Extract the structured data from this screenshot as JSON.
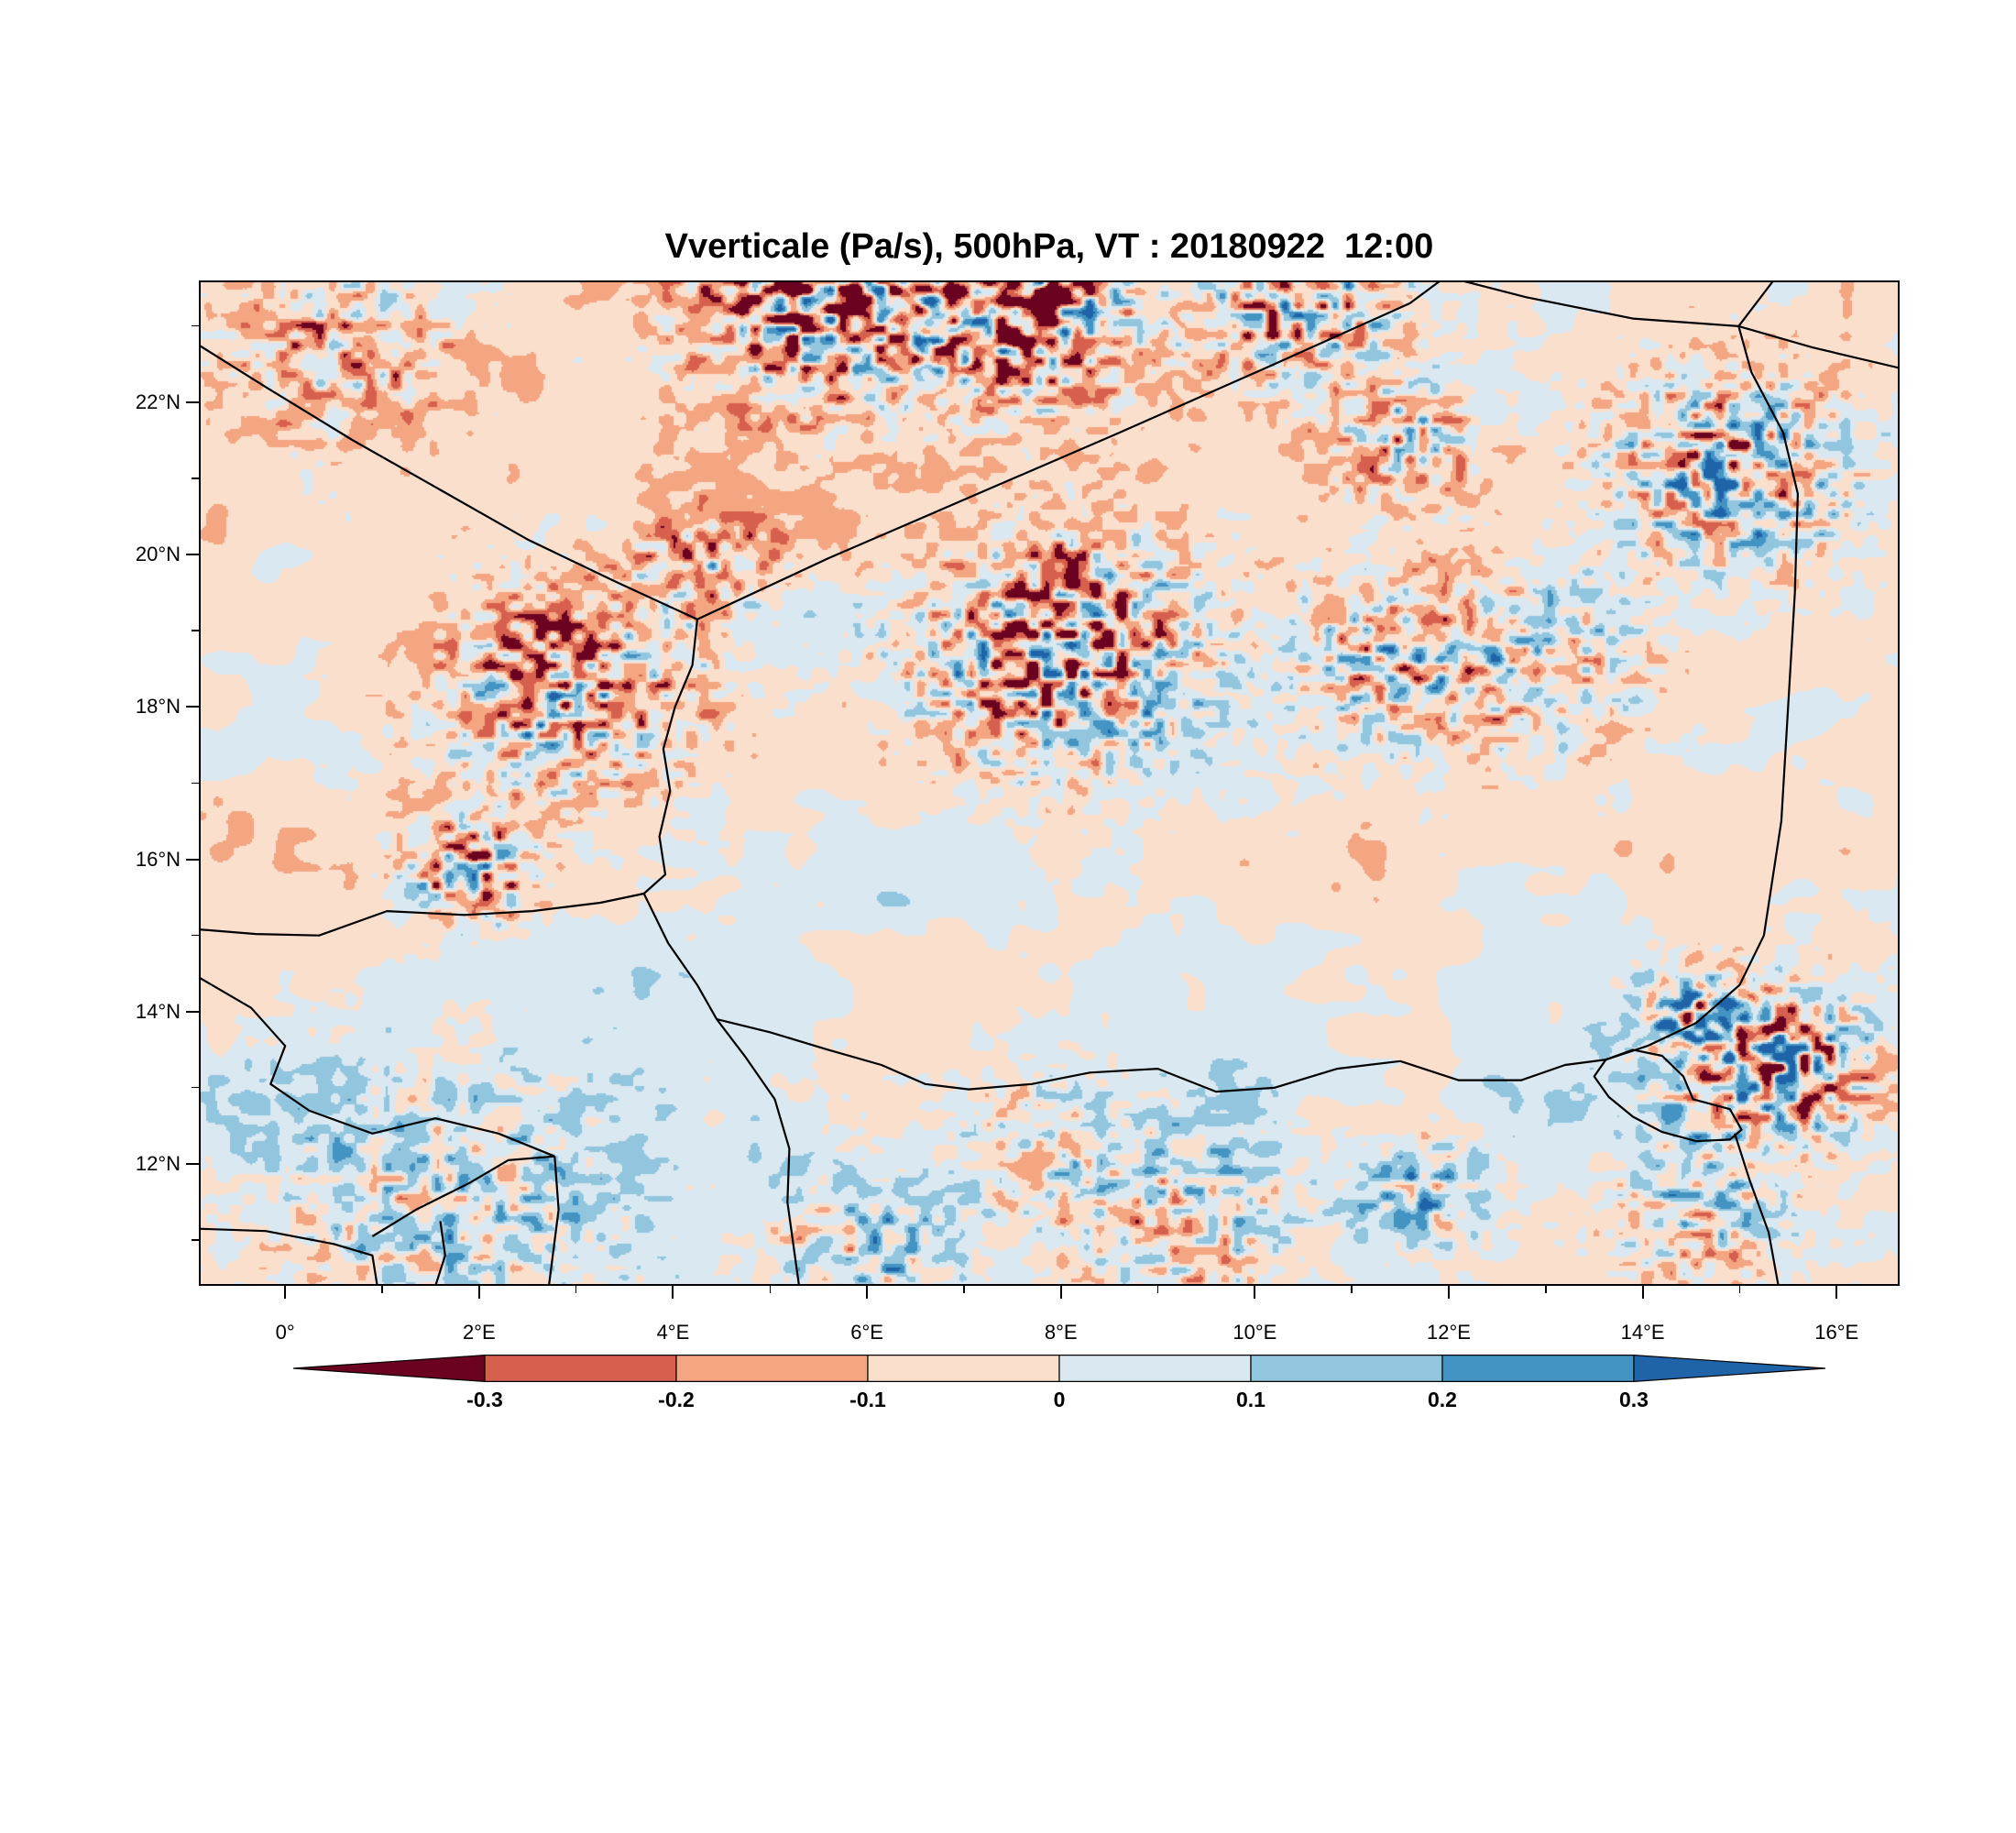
{
  "title": "Vverticale (Pa/s), 500hPa, VT : 20180922  12:00",
  "style": {
    "border_color": "#000000",
    "text_color": "#000000",
    "background": "#ffffff"
  },
  "chart_data": {
    "type": "heatmap",
    "title": "Vverticale (Pa/s), 500hPa, VT : 20180922  12:00",
    "variable": "Vverticale",
    "units": "Pa/s",
    "level": "500hPa",
    "valid_time": "20180922 12:00",
    "map_extent": {
      "lon_min": -0.89,
      "lon_max": 16.65,
      "lat_min": 10.4,
      "lat_max": 23.6
    },
    "lon_ticks": [
      {
        "value": 0,
        "label": "0°"
      },
      {
        "value": 2,
        "label": "2°E"
      },
      {
        "value": 4,
        "label": "4°E"
      },
      {
        "value": 6,
        "label": "6°E"
      },
      {
        "value": 8,
        "label": "8°E"
      },
      {
        "value": 10,
        "label": "10°E"
      },
      {
        "value": 12,
        "label": "12°E"
      },
      {
        "value": 14,
        "label": "14°E"
      },
      {
        "value": 16,
        "label": "16°E"
      }
    ],
    "lat_ticks": [
      {
        "value": 12,
        "label": "12°N"
      },
      {
        "value": 14,
        "label": "14°N"
      },
      {
        "value": 16,
        "label": "16°N"
      },
      {
        "value": 18,
        "label": "18°N"
      },
      {
        "value": 20,
        "label": "20°N"
      },
      {
        "value": 22,
        "label": "22°N"
      }
    ],
    "colorbar": {
      "levels": [
        -0.3,
        -0.2,
        -0.1,
        0,
        0.1,
        0.2,
        0.3
      ],
      "labels": [
        "-0.3",
        "-0.2",
        "-0.1",
        "0",
        "0.1",
        "0.2",
        "0.3"
      ],
      "colors": [
        "#6a0220",
        "#d6604d",
        "#f4a582",
        "#fbdfcd",
        "#d9e8f1",
        "#92c5de",
        "#4393c3",
        "#1f63a8"
      ]
    },
    "field": {
      "description": "Filled contours of 500 hPa vertical velocity over the Niger region; background mostly between -0.1 and 0.1 Pa/s (pale pink / pale blue), scattered ±0.1-0.2 patches, and localized gravity-wave-like extremes beyond ±0.3 Pa/s.",
      "speckle_scale": 0.13,
      "base_noise": [
        {
          "amp": 0.078,
          "scale": 1.6
        },
        {
          "amp": 0.055,
          "scale": 0.62
        },
        {
          "amp": 0.034,
          "scale": 0.23
        }
      ],
      "bias_centers": [
        {
          "lon": 1.5,
          "lat": 21.5,
          "sx": 3.5,
          "sy": 2.5,
          "amp": -0.055
        },
        {
          "lon": 2.5,
          "lat": 18.3,
          "sx": 3.0,
          "sy": 2.0,
          "amp": -0.028
        },
        {
          "lon": 1.5,
          "lat": 12.2,
          "sx": 2.5,
          "sy": 1.6,
          "amp": 0.06
        },
        {
          "lon": 6.5,
          "lat": 12.0,
          "sx": 3.0,
          "sy": 1.6,
          "amp": 0.035
        },
        {
          "lon": 12.5,
          "lat": 12.3,
          "sx": 3.0,
          "sy": 1.8,
          "amp": 0.028
        },
        {
          "lon": 13.0,
          "lat": 19.0,
          "sx": 3.5,
          "sy": 2.5,
          "amp": -0.018
        },
        {
          "lon": 15.9,
          "lat": 15.3,
          "sx": 1.3,
          "sy": 2.2,
          "amp": -0.032
        },
        {
          "lon": 12.6,
          "lat": 16.6,
          "sx": 1.3,
          "sy": 0.9,
          "amp": -0.055
        },
        {
          "lon": 11.0,
          "lat": 21.0,
          "sx": 4.0,
          "sy": 2.0,
          "amp": -0.015
        },
        {
          "lon": 5.5,
          "lat": 22.6,
          "sx": 2.5,
          "sy": 1.2,
          "amp": -0.03
        },
        {
          "lon": 8.5,
          "lat": 15.5,
          "sx": 3.0,
          "sy": 2.0,
          "amp": 0.012
        }
      ],
      "activity_centers": [
        {
          "lon": 5.6,
          "lat": 23.35,
          "sigma": 1.0,
          "amp": 0.62,
          "bias": -0.05
        },
        {
          "lon": 7.6,
          "lat": 23.15,
          "sigma": 0.9,
          "amp": 0.55,
          "bias": -0.02
        },
        {
          "lon": 10.45,
          "lat": 23.25,
          "sigma": 0.8,
          "amp": 0.45,
          "bias": 0
        },
        {
          "lon": 11.55,
          "lat": 21.5,
          "sigma": 0.6,
          "amp": 0.38,
          "bias": 0
        },
        {
          "lon": 14.9,
          "lat": 21.1,
          "sigma": 0.9,
          "amp": 0.5,
          "bias": 0
        },
        {
          "lon": 8.0,
          "lat": 18.7,
          "sigma": 1.1,
          "amp": 0.55,
          "bias": 0
        },
        {
          "lon": 11.4,
          "lat": 18.55,
          "sigma": 0.9,
          "amp": 0.34,
          "bias": -0.02
        },
        {
          "lon": 12.9,
          "lat": 18.6,
          "sigma": 0.9,
          "amp": 0.3,
          "bias": -0.02
        },
        {
          "lon": 2.9,
          "lat": 18.2,
          "sigma": 1.0,
          "amp": 0.46,
          "bias": -0.03
        },
        {
          "lon": 4.35,
          "lat": 19.8,
          "sigma": 0.55,
          "amp": 0.38,
          "bias": -0.03
        },
        {
          "lon": 1.9,
          "lat": 15.85,
          "sigma": 0.5,
          "amp": 0.52,
          "bias": 0
        },
        {
          "lon": 15.25,
          "lat": 13.25,
          "sigma": 0.75,
          "amp": 0.62,
          "bias": 0
        },
        {
          "lon": 14.55,
          "lat": 13.95,
          "sigma": 0.45,
          "amp": 0.4,
          "bias": 0
        },
        {
          "lon": 9.3,
          "lat": 11.2,
          "sigma": 0.9,
          "amp": 0.3,
          "bias": 0
        },
        {
          "lon": 6.0,
          "lat": 10.9,
          "sigma": 0.7,
          "amp": 0.3,
          "bias": 0
        },
        {
          "lon": 1.6,
          "lat": 11.4,
          "sigma": 1.4,
          "amp": 0.26,
          "bias": 0
        },
        {
          "lon": 0.6,
          "lat": 22.7,
          "sigma": 0.9,
          "amp": 0.3,
          "bias": -0.05
        },
        {
          "lon": 7.9,
          "lat": 12.1,
          "sigma": 0.8,
          "amp": 0.22,
          "bias": 0
        },
        {
          "lon": 11.8,
          "lat": 11.6,
          "sigma": 0.5,
          "amp": 0.35,
          "bias": 0.08
        },
        {
          "lon": 14.6,
          "lat": 11.3,
          "sigma": 0.7,
          "amp": 0.3,
          "bias": -0.02
        }
      ]
    },
    "borders": [
      [
        [
          4.25,
          19.15
        ],
        [
          5.6,
          19.95
        ],
        [
          7.0,
          20.72
        ],
        [
          8.6,
          21.6
        ],
        [
          10.2,
          22.5
        ],
        [
          11.6,
          23.3
        ],
        [
          11.97,
          23.65
        ]
      ],
      [
        [
          4.25,
          19.15
        ],
        [
          3.4,
          19.65
        ],
        [
          2.5,
          20.2
        ],
        [
          1.6,
          20.85
        ],
        [
          0.7,
          21.5
        ],
        [
          -0.2,
          22.2
        ],
        [
          -0.89,
          22.75
        ]
      ],
      [
        [
          11.97,
          23.65
        ],
        [
          12.8,
          23.38
        ],
        [
          13.9,
          23.1
        ],
        [
          14.99,
          23.0
        ]
      ],
      [
        [
          14.99,
          23.0
        ],
        [
          15.35,
          23.6
        ]
      ],
      [
        [
          14.99,
          23.0
        ],
        [
          15.75,
          22.72
        ],
        [
          16.65,
          22.45
        ]
      ],
      [
        [
          14.99,
          23.0
        ],
        [
          15.12,
          22.4
        ],
        [
          15.45,
          21.6
        ],
        [
          15.6,
          20.8
        ],
        [
          15.57,
          19.5
        ],
        [
          15.5,
          18.0
        ],
        [
          15.43,
          16.5
        ],
        [
          15.25,
          15.0
        ],
        [
          15.0,
          14.35
        ],
        [
          14.55,
          13.85
        ],
        [
          14.05,
          13.55
        ],
        [
          13.62,
          13.37
        ]
      ],
      [
        [
          4.25,
          19.15
        ],
        [
          4.2,
          18.55
        ],
        [
          4.02,
          18.0
        ],
        [
          3.9,
          17.45
        ],
        [
          3.97,
          16.9
        ],
        [
          3.86,
          16.3
        ],
        [
          3.92,
          15.8
        ],
        [
          3.7,
          15.55
        ],
        [
          3.25,
          15.43
        ],
        [
          2.55,
          15.32
        ],
        [
          1.85,
          15.27
        ],
        [
          1.05,
          15.32
        ],
        [
          0.35,
          15.0
        ],
        [
          -0.3,
          15.02
        ],
        [
          -0.89,
          15.08
        ]
      ],
      [
        [
          3.7,
          15.55
        ],
        [
          3.95,
          14.9
        ],
        [
          4.25,
          14.35
        ],
        [
          4.45,
          13.9
        ],
        [
          4.75,
          13.4
        ],
        [
          5.05,
          12.85
        ],
        [
          5.2,
          12.2
        ],
        [
          5.18,
          11.5
        ],
        [
          5.3,
          10.4
        ]
      ],
      [
        [
          4.45,
          13.9
        ],
        [
          5.0,
          13.73
        ],
        [
          5.6,
          13.5
        ],
        [
          6.15,
          13.3
        ],
        [
          6.6,
          13.05
        ],
        [
          7.05,
          12.98
        ],
        [
          7.7,
          13.05
        ],
        [
          8.3,
          13.2
        ],
        [
          9.0,
          13.25
        ],
        [
          9.6,
          12.95
        ],
        [
          10.2,
          13.0
        ],
        [
          10.85,
          13.25
        ],
        [
          11.5,
          13.35
        ],
        [
          12.1,
          13.1
        ],
        [
          12.75,
          13.1
        ],
        [
          13.2,
          13.3
        ],
        [
          13.62,
          13.37
        ]
      ],
      [
        [
          14.95,
          12.4
        ],
        [
          15.1,
          11.8
        ],
        [
          15.3,
          11.1
        ],
        [
          15.4,
          10.4
        ]
      ],
      [
        [
          -0.89,
          14.45
        ],
        [
          -0.35,
          14.05
        ],
        [
          0.0,
          13.55
        ],
        [
          -0.15,
          13.05
        ],
        [
          0.25,
          12.7
        ],
        [
          0.9,
          12.4
        ],
        [
          1.55,
          12.6
        ],
        [
          2.2,
          12.4
        ],
        [
          2.78,
          12.1
        ]
      ],
      [
        [
          2.78,
          12.1
        ],
        [
          2.82,
          11.4
        ],
        [
          2.72,
          10.4
        ]
      ],
      [
        [
          -0.89,
          11.15
        ],
        [
          -0.2,
          11.12
        ],
        [
          0.5,
          10.95
        ],
        [
          0.9,
          10.8
        ],
        [
          0.95,
          10.4
        ]
      ],
      [
        [
          1.6,
          11.25
        ],
        [
          1.65,
          10.8
        ],
        [
          1.55,
          10.4
        ]
      ],
      [
        [
          0.9,
          11.05
        ],
        [
          1.35,
          11.4
        ],
        [
          1.9,
          11.75
        ],
        [
          2.3,
          12.05
        ],
        [
          2.78,
          12.1
        ]
      ]
    ],
    "lake_chad_outline": [
      [
        13.62,
        13.37
      ],
      [
        13.9,
        13.5
      ],
      [
        14.2,
        13.42
      ],
      [
        14.42,
        13.15
      ],
      [
        14.52,
        12.85
      ],
      [
        14.9,
        12.72
      ],
      [
        15.02,
        12.45
      ],
      [
        14.9,
        12.32
      ],
      [
        14.55,
        12.3
      ],
      [
        14.2,
        12.42
      ],
      [
        13.9,
        12.62
      ],
      [
        13.65,
        12.88
      ],
      [
        13.5,
        13.15
      ]
    ]
  }
}
